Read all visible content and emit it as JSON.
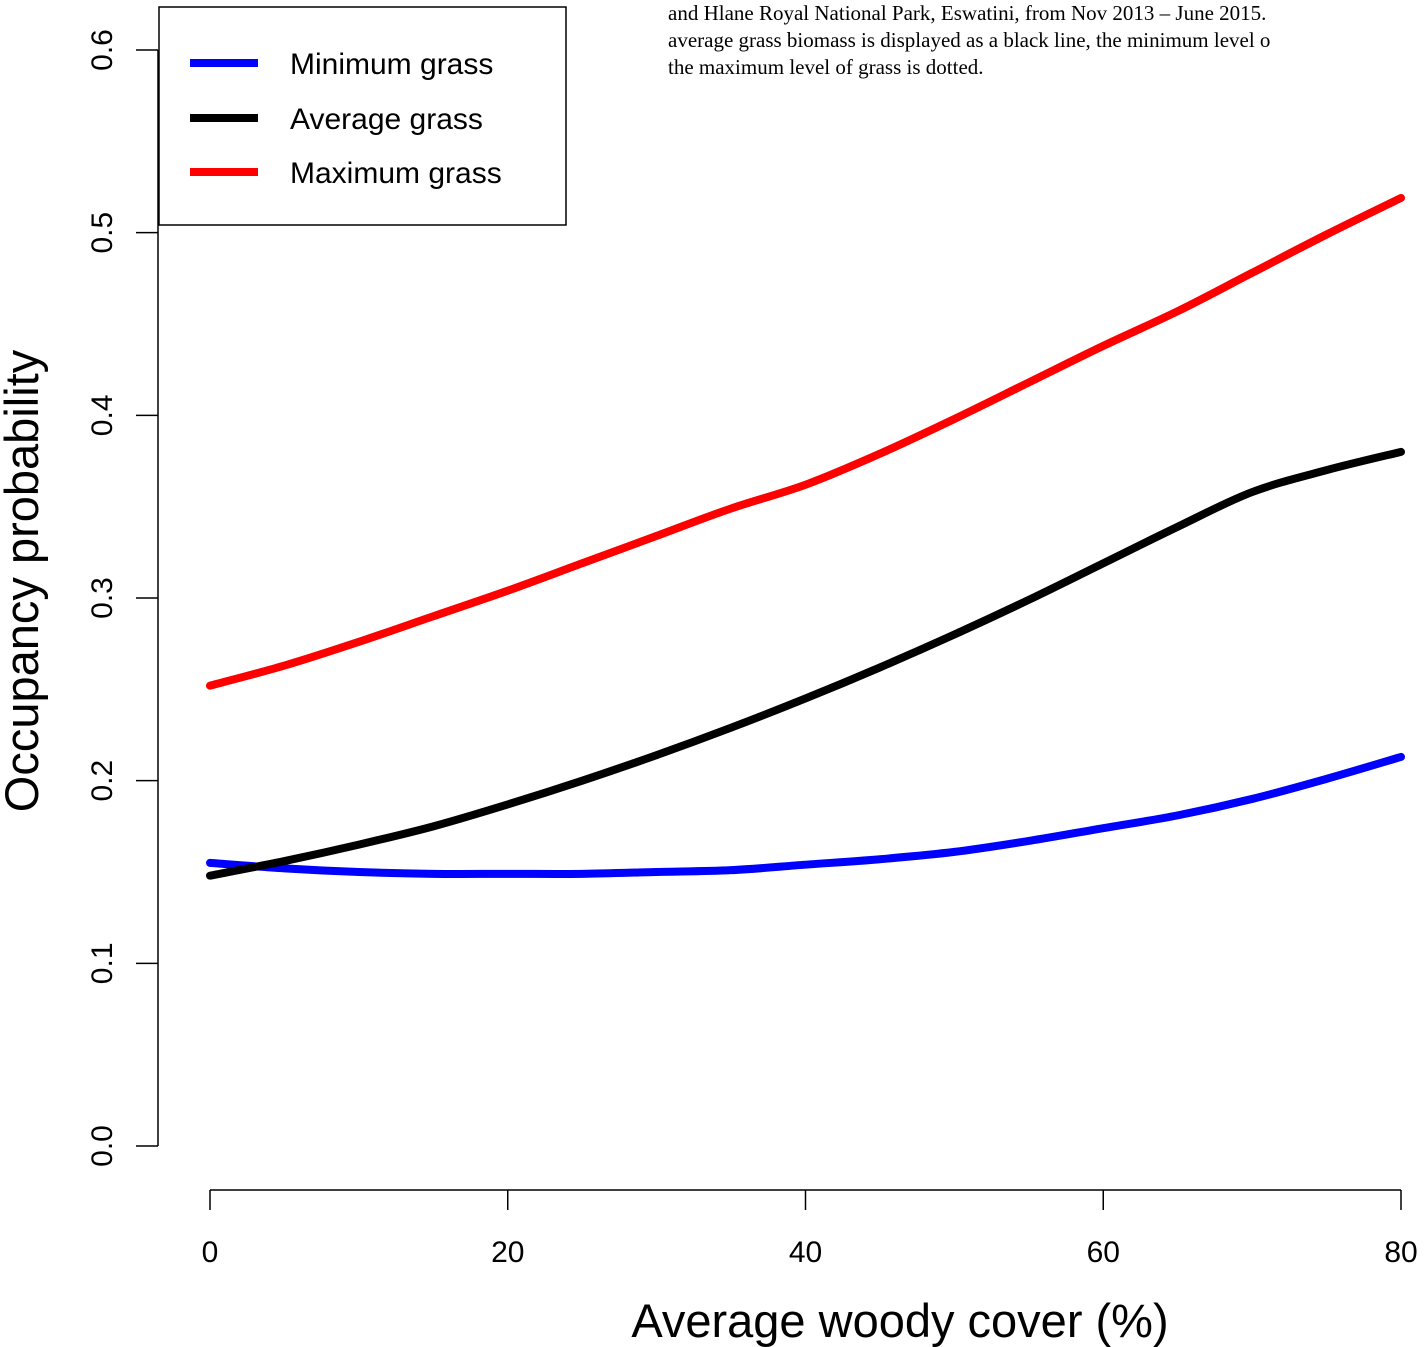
{
  "caption": {
    "lines": [
      "and Hlane Royal National Park, Eswatini, from Nov 2013 – June 2015.",
      "average grass biomass is displayed as a black line, the minimum level o",
      "the maximum level of grass is dotted."
    ]
  },
  "chart_data": {
    "type": "line",
    "xlabel": "Average woody cover (%)",
    "ylabel": "Occupancy probability",
    "xlim": [
      0,
      80
    ],
    "ylim": [
      0,
      0.6
    ],
    "x_ticks": [
      "0",
      "20",
      "40",
      "60",
      "80"
    ],
    "y_ticks": [
      "0.0",
      "0.1",
      "0.2",
      "0.3",
      "0.4",
      "0.5",
      "0.6"
    ],
    "legend_position": "top-left",
    "grid": false,
    "series": [
      {
        "name": "Minimum grass",
        "color": "#0000ff",
        "x": [
          0,
          5,
          10,
          15,
          20,
          25,
          30,
          35,
          40,
          45,
          50,
          55,
          60,
          65,
          70,
          75,
          80
        ],
        "y": [
          0.155,
          0.152,
          0.15,
          0.149,
          0.149,
          0.149,
          0.15,
          0.151,
          0.154,
          0.157,
          0.161,
          0.167,
          0.174,
          0.181,
          0.19,
          0.201,
          0.213
        ]
      },
      {
        "name": "Average grass",
        "color": "#000000",
        "x": [
          0,
          5,
          10,
          15,
          20,
          25,
          30,
          35,
          40,
          45,
          50,
          55,
          60,
          65,
          70,
          75,
          80
        ],
        "y": [
          0.148,
          0.156,
          0.165,
          0.175,
          0.187,
          0.2,
          0.214,
          0.229,
          0.245,
          0.262,
          0.28,
          0.299,
          0.319,
          0.339,
          0.358,
          0.37,
          0.38
        ]
      },
      {
        "name": "Maximum grass",
        "color": "#ff0000",
        "x": [
          0,
          5,
          10,
          15,
          20,
          25,
          30,
          35,
          40,
          45,
          50,
          55,
          60,
          65,
          70,
          75,
          80
        ],
        "y": [
          0.252,
          0.263,
          0.276,
          0.29,
          0.304,
          0.319,
          0.334,
          0.349,
          0.362,
          0.379,
          0.398,
          0.418,
          0.438,
          0.457,
          0.478,
          0.499,
          0.519
        ]
      }
    ]
  }
}
